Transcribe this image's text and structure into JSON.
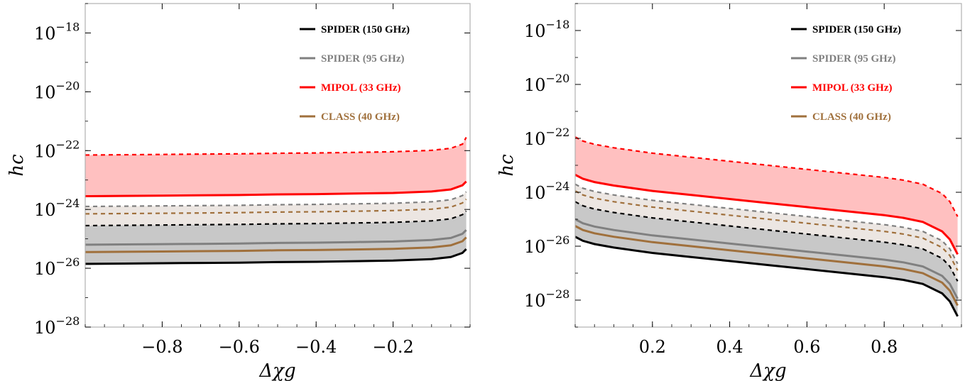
{
  "colors": {
    "spider150": "#000000",
    "spider95": "#808080",
    "mipol": "#ff0000",
    "class": "#a0703c",
    "mipol_fill": "#ffc0c0",
    "gray_fill": "#c8c8c8",
    "light_fill": "#ece6e2",
    "frame": "#b0b0b0"
  },
  "chart_data": [
    {
      "type": "area",
      "xlabel": "Δχg",
      "ylabel": "hc",
      "xlim": [
        -1.0,
        0.0
      ],
      "ylim_log10": [
        -28,
        -17
      ],
      "y_scale": "log",
      "x_ticks": [
        -0.8,
        -0.6,
        -0.4,
        -0.2
      ],
      "x_tick_labels": [
        "−0.8",
        "−0.6",
        "−0.4",
        "−0.2"
      ],
      "y_ticks_log10": [
        -18,
        -20,
        -22,
        -24,
        -26,
        -28
      ],
      "legend_position": "top-right",
      "legend": [
        "SPIDER (150 GHz)",
        "SPIDER (95 GHz)",
        "MIPOL (33 GHz)",
        "CLASS (40 GHz)"
      ],
      "x": [
        -1.0,
        -0.9,
        -0.8,
        -0.7,
        -0.6,
        -0.5,
        -0.4,
        -0.3,
        -0.2,
        -0.1,
        -0.05,
        -0.02,
        -0.01
      ],
      "series": [
        {
          "name": "SPIDER (150 GHz)",
          "style": "solid",
          "log10_y": [
            -25.85,
            -25.84,
            -25.83,
            -25.82,
            -25.81,
            -25.79,
            -25.78,
            -25.76,
            -25.74,
            -25.69,
            -25.62,
            -25.48,
            -25.35
          ]
        },
        {
          "name": "SPIDER (150 GHz)",
          "style": "dashed",
          "log10_y": [
            -24.55,
            -24.54,
            -24.53,
            -24.52,
            -24.51,
            -24.49,
            -24.48,
            -24.46,
            -24.44,
            -24.39,
            -24.32,
            -24.18,
            -24.05
          ]
        },
        {
          "name": "SPIDER (95 GHz)",
          "style": "solid",
          "log10_y": [
            -25.2,
            -25.19,
            -25.18,
            -25.17,
            -25.16,
            -25.14,
            -25.13,
            -25.11,
            -25.09,
            -25.04,
            -24.97,
            -24.83,
            -24.7
          ]
        },
        {
          "name": "SPIDER (95 GHz)",
          "style": "dashed",
          "log10_y": [
            -23.9,
            -23.89,
            -23.88,
            -23.87,
            -23.86,
            -23.84,
            -23.83,
            -23.81,
            -23.79,
            -23.74,
            -23.67,
            -23.53,
            -23.4
          ]
        },
        {
          "name": "MIPOL (33 GHz)",
          "style": "solid",
          "log10_y": [
            -23.55,
            -23.54,
            -23.53,
            -23.52,
            -23.51,
            -23.49,
            -23.48,
            -23.46,
            -23.44,
            -23.39,
            -23.32,
            -23.18,
            -23.05
          ]
        },
        {
          "name": "MIPOL (33 GHz)",
          "style": "dashed",
          "log10_y": [
            -22.15,
            -22.14,
            -22.13,
            -22.12,
            -22.11,
            -22.09,
            -22.08,
            -22.06,
            -22.04,
            -21.99,
            -21.92,
            -21.78,
            -21.55
          ]
        },
        {
          "name": "CLASS (40 GHz)",
          "style": "solid",
          "log10_y": [
            -25.45,
            -25.44,
            -25.43,
            -25.42,
            -25.41,
            -25.39,
            -25.38,
            -25.36,
            -25.34,
            -25.29,
            -25.22,
            -25.08,
            -24.95
          ]
        },
        {
          "name": "CLASS (40 GHz)",
          "style": "dashed",
          "log10_y": [
            -24.15,
            -24.14,
            -24.13,
            -24.12,
            -24.11,
            -24.09,
            -24.08,
            -24.06,
            -24.04,
            -23.99,
            -23.92,
            -23.78,
            -23.65
          ]
        }
      ]
    },
    {
      "type": "area",
      "xlabel": "Δχg",
      "ylabel": "hc",
      "xlim": [
        0.0,
        1.0
      ],
      "ylim_log10": [
        -29,
        -17
      ],
      "y_scale": "log",
      "x_ticks": [
        0.2,
        0.4,
        0.6,
        0.8
      ],
      "x_tick_labels": [
        "0.2",
        "0.4",
        "0.6",
        "0.8"
      ],
      "y_ticks_log10": [
        -18,
        -20,
        -22,
        -24,
        -26,
        -28
      ],
      "legend_position": "top-right",
      "legend": [
        "SPIDER (150 GHz)",
        "SPIDER (95 GHz)",
        "MIPOL (33 GHz)",
        "CLASS (40 GHz)"
      ],
      "x": [
        0.0,
        0.02,
        0.05,
        0.1,
        0.2,
        0.3,
        0.4,
        0.5,
        0.6,
        0.7,
        0.8,
        0.85,
        0.9,
        0.95,
        0.97,
        0.99
      ],
      "series": [
        {
          "name": "SPIDER (150 GHz)",
          "style": "solid",
          "log10_y": [
            -25.65,
            -25.8,
            -25.92,
            -26.05,
            -26.25,
            -26.4,
            -26.55,
            -26.7,
            -26.85,
            -27.0,
            -27.15,
            -27.25,
            -27.4,
            -27.75,
            -28.05,
            -28.6
          ]
        },
        {
          "name": "SPIDER (150 GHz)",
          "style": "dashed",
          "log10_y": [
            -24.35,
            -24.5,
            -24.62,
            -24.75,
            -24.95,
            -25.1,
            -25.25,
            -25.4,
            -25.55,
            -25.7,
            -25.85,
            -25.95,
            -26.1,
            -26.45,
            -26.75,
            -27.3
          ]
        },
        {
          "name": "SPIDER (95 GHz)",
          "style": "solid",
          "log10_y": [
            -25.0,
            -25.15,
            -25.27,
            -25.4,
            -25.6,
            -25.75,
            -25.9,
            -26.05,
            -26.2,
            -26.35,
            -26.5,
            -26.6,
            -26.75,
            -27.1,
            -27.4,
            -27.95
          ]
        },
        {
          "name": "SPIDER (95 GHz)",
          "style": "dashed",
          "log10_y": [
            -23.7,
            -23.85,
            -23.97,
            -24.1,
            -24.3,
            -24.45,
            -24.6,
            -24.75,
            -24.9,
            -25.05,
            -25.2,
            -25.3,
            -25.45,
            -25.8,
            -26.1,
            -26.65
          ]
        },
        {
          "name": "MIPOL (33 GHz)",
          "style": "solid",
          "log10_y": [
            -23.35,
            -23.5,
            -23.62,
            -23.75,
            -23.95,
            -24.1,
            -24.25,
            -24.4,
            -24.55,
            -24.7,
            -24.85,
            -24.95,
            -25.1,
            -25.45,
            -25.75,
            -26.3
          ]
        },
        {
          "name": "MIPOL (33 GHz)",
          "style": "dashed",
          "log10_y": [
            -21.95,
            -22.1,
            -22.22,
            -22.35,
            -22.55,
            -22.7,
            -22.85,
            -23.0,
            -23.15,
            -23.3,
            -23.45,
            -23.55,
            -23.7,
            -24.05,
            -24.35,
            -24.9
          ]
        },
        {
          "name": "CLASS (40 GHz)",
          "style": "solid",
          "log10_y": [
            -25.25,
            -25.4,
            -25.52,
            -25.65,
            -25.85,
            -26.0,
            -26.15,
            -26.3,
            -26.45,
            -26.6,
            -26.75,
            -26.85,
            -27.0,
            -27.35,
            -27.65,
            -28.2
          ]
        },
        {
          "name": "CLASS (40 GHz)",
          "style": "dashed",
          "log10_y": [
            -23.95,
            -24.1,
            -24.22,
            -24.35,
            -24.55,
            -24.7,
            -24.85,
            -25.0,
            -25.15,
            -25.3,
            -25.45,
            -25.55,
            -25.7,
            -26.05,
            -26.35,
            -26.9
          ]
        }
      ]
    }
  ]
}
